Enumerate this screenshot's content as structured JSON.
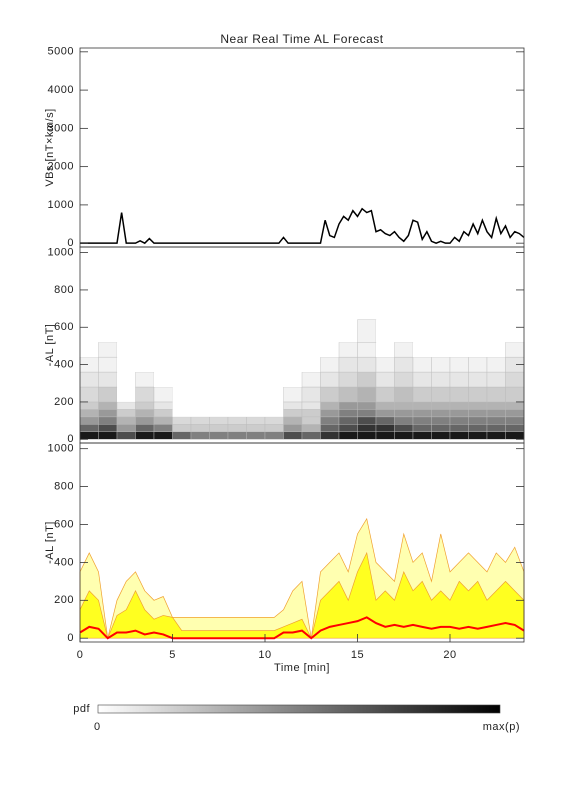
{
  "title": "Near Real Time AL Forecast",
  "chart_data": [
    {
      "type": "line",
      "ylabel": "VBs [nT×km/s]",
      "color": "#000000",
      "xlim": [
        0,
        24
      ],
      "ylim": [
        -100,
        5100
      ],
      "yticks": [
        0,
        1000,
        2000,
        3000,
        4000,
        5000
      ],
      "x": [
        0,
        0.25,
        0.5,
        0.75,
        1,
        1.25,
        1.5,
        1.75,
        2,
        2.25,
        2.5,
        2.75,
        3,
        3.25,
        3.5,
        3.75,
        4,
        4.25,
        4.5,
        4.75,
        5,
        5.25,
        5.5,
        5.75,
        6,
        6.25,
        6.5,
        6.75,
        7,
        7.25,
        7.5,
        7.75,
        8,
        8.25,
        8.5,
        8.75,
        9,
        9.25,
        9.5,
        9.75,
        10,
        10.25,
        10.5,
        10.75,
        11,
        11.25,
        11.5,
        11.75,
        12,
        12.25,
        12.5,
        12.75,
        13,
        13.25,
        13.5,
        13.75,
        14,
        14.25,
        14.5,
        14.75,
        15,
        15.25,
        15.5,
        15.75,
        16,
        16.25,
        16.5,
        16.75,
        17,
        17.25,
        17.5,
        17.75,
        18,
        18.25,
        18.5,
        18.75,
        19,
        19.25,
        19.5,
        19.75,
        20,
        20.25,
        20.5,
        20.75,
        21,
        21.25,
        21.5,
        21.75,
        22,
        22.25,
        22.5,
        22.75,
        23,
        23.25,
        23.5,
        23.75,
        24
      ],
      "values": [
        0,
        0,
        0,
        0,
        0,
        0,
        0,
        0,
        0,
        800,
        0,
        0,
        0,
        60,
        0,
        120,
        0,
        0,
        0,
        0,
        0,
        0,
        0,
        0,
        0,
        0,
        0,
        0,
        0,
        0,
        0,
        0,
        0,
        0,
        0,
        0,
        0,
        0,
        0,
        0,
        0,
        0,
        0,
        0,
        150,
        0,
        0,
        0,
        0,
        0,
        0,
        0,
        0,
        600,
        200,
        150,
        500,
        700,
        600,
        850,
        700,
        900,
        800,
        850,
        300,
        350,
        250,
        200,
        300,
        150,
        50,
        200,
        600,
        550,
        100,
        300,
        50,
        0,
        50,
        0,
        0,
        150,
        50,
        300,
        200,
        500,
        250,
        600,
        300,
        150,
        650,
        250,
        450,
        150,
        300,
        250,
        150
      ]
    },
    {
      "type": "heatmap",
      "ylabel": "-AL [nT]",
      "xlim": [
        0,
        24
      ],
      "ylim": [
        -20,
        1030
      ],
      "yticks": [
        0,
        200,
        400,
        600,
        800,
        1000
      ],
      "xbins": [
        0,
        1,
        2,
        3,
        4,
        5,
        6,
        7,
        8,
        9,
        10,
        11,
        12,
        13,
        14,
        15,
        16,
        17,
        18,
        19,
        20,
        21,
        22,
        23,
        24
      ],
      "ybins": [
        0,
        40,
        80,
        120,
        160,
        200,
        280,
        360,
        440,
        520,
        640
      ],
      "values": [
        [
          0.9,
          0.9,
          0.7,
          0.9,
          0.9,
          0.6,
          0.5,
          0.5,
          0.5,
          0.5,
          0.5,
          0.7,
          0.6,
          0.8,
          0.9,
          0.9,
          0.9,
          0.9,
          0.9,
          0.9,
          0.9,
          0.9,
          0.9,
          0.9
        ],
        [
          0.6,
          0.7,
          0.4,
          0.6,
          0.5,
          0.2,
          0.2,
          0.2,
          0.2,
          0.2,
          0.2,
          0.4,
          0.3,
          0.6,
          0.7,
          0.8,
          0.8,
          0.7,
          0.6,
          0.6,
          0.6,
          0.6,
          0.6,
          0.6
        ],
        [
          0.4,
          0.5,
          0.3,
          0.4,
          0.3,
          0.15,
          0.15,
          0.15,
          0.15,
          0.15,
          0.15,
          0.3,
          0.2,
          0.5,
          0.6,
          0.7,
          0.6,
          0.5,
          0.5,
          0.5,
          0.5,
          0.5,
          0.5,
          0.5
        ],
        [
          0.3,
          0.4,
          0.2,
          0.3,
          0.2,
          0,
          0,
          0,
          0,
          0,
          0,
          0.2,
          0.2,
          0.4,
          0.5,
          0.5,
          0.4,
          0.4,
          0.4,
          0.4,
          0.4,
          0.4,
          0.4,
          0.4
        ],
        [
          0.2,
          0.3,
          0.1,
          0.2,
          0.1,
          0,
          0,
          0,
          0,
          0,
          0,
          0.1,
          0.1,
          0.3,
          0.4,
          0.4,
          0.3,
          0.3,
          0.3,
          0.3,
          0.3,
          0.3,
          0.3,
          0.3
        ],
        [
          0.15,
          0.2,
          0,
          0.15,
          0.05,
          0,
          0,
          0,
          0,
          0,
          0,
          0.05,
          0.1,
          0.2,
          0.25,
          0.3,
          0.2,
          0.25,
          0.2,
          0.2,
          0.2,
          0.2,
          0.2,
          0.2
        ],
        [
          0.1,
          0.1,
          0,
          0.05,
          0,
          0,
          0,
          0,
          0,
          0,
          0,
          0,
          0.05,
          0.1,
          0.15,
          0.2,
          0.1,
          0.15,
          0.1,
          0.1,
          0.1,
          0.1,
          0.1,
          0.15
        ],
        [
          0.05,
          0.05,
          0,
          0,
          0,
          0,
          0,
          0,
          0,
          0,
          0,
          0,
          0,
          0.05,
          0.1,
          0.1,
          0.05,
          0.1,
          0.05,
          0.05,
          0.05,
          0.05,
          0.05,
          0.1
        ],
        [
          0,
          0.05,
          0,
          0,
          0,
          0,
          0,
          0,
          0,
          0,
          0,
          0,
          0,
          0,
          0.05,
          0.05,
          0,
          0.05,
          0,
          0,
          0,
          0,
          0,
          0.05
        ],
        [
          0,
          0,
          0,
          0,
          0,
          0,
          0,
          0,
          0,
          0,
          0,
          0,
          0,
          0,
          0,
          0.05,
          0,
          0,
          0,
          0,
          0,
          0,
          0,
          0
        ]
      ]
    },
    {
      "type": "band",
      "ylabel": "-AL [nT]",
      "xlabel": "Time [min]",
      "edge_color": "#f0a030",
      "xlim": [
        0,
        24
      ],
      "xticks": [
        0,
        5,
        10,
        15,
        20
      ],
      "ylim": [
        -20,
        1030
      ],
      "yticks": [
        0,
        200,
        400,
        600,
        800,
        1000
      ],
      "x": [
        0,
        0.5,
        1,
        1.5,
        2,
        2.5,
        3,
        3.5,
        4,
        4.5,
        5,
        5.5,
        6,
        6.5,
        7,
        7.5,
        8,
        8.5,
        9,
        9.5,
        10,
        10.5,
        11,
        11.5,
        12,
        12.5,
        13,
        13.5,
        14,
        14.5,
        15,
        15.5,
        16,
        16.5,
        17,
        17.5,
        18,
        18.5,
        19,
        19.5,
        20,
        20.5,
        21,
        21.5,
        22,
        22.5,
        23,
        23.5,
        24
      ],
      "series": [
        {
          "color": "#ffffb0",
          "fill": true,
          "values": [
            350,
            450,
            350,
            0,
            200,
            300,
            350,
            250,
            200,
            220,
            110,
            110,
            110,
            110,
            110,
            110,
            110,
            110,
            110,
            110,
            110,
            110,
            150,
            250,
            300,
            0,
            350,
            400,
            450,
            350,
            550,
            630,
            400,
            350,
            300,
            550,
            400,
            450,
            300,
            550,
            350,
            400,
            450,
            400,
            350,
            450,
            400,
            480,
            350
          ]
        },
        {
          "color": "#ffff20",
          "fill": true,
          "values": [
            150,
            250,
            200,
            0,
            120,
            150,
            250,
            150,
            100,
            120,
            110,
            40,
            40,
            40,
            40,
            40,
            40,
            40,
            40,
            40,
            40,
            40,
            60,
            80,
            100,
            0,
            200,
            250,
            300,
            200,
            350,
            450,
            200,
            250,
            200,
            350,
            250,
            300,
            200,
            250,
            200,
            300,
            250,
            300,
            200,
            250,
            300,
            250,
            200
          ]
        },
        {
          "color": "#ff0000",
          "fill": false,
          "values": [
            30,
            60,
            50,
            0,
            30,
            30,
            40,
            20,
            30,
            20,
            0,
            0,
            0,
            0,
            0,
            0,
            0,
            0,
            0,
            0,
            0,
            0,
            30,
            30,
            40,
            0,
            40,
            60,
            70,
            80,
            90,
            110,
            80,
            60,
            70,
            60,
            70,
            60,
            50,
            60,
            60,
            50,
            60,
            50,
            60,
            70,
            80,
            70,
            40
          ]
        }
      ]
    }
  ],
  "colorbar": {
    "label": "pdf",
    "min_label": "0",
    "max_label": "max(p)"
  }
}
